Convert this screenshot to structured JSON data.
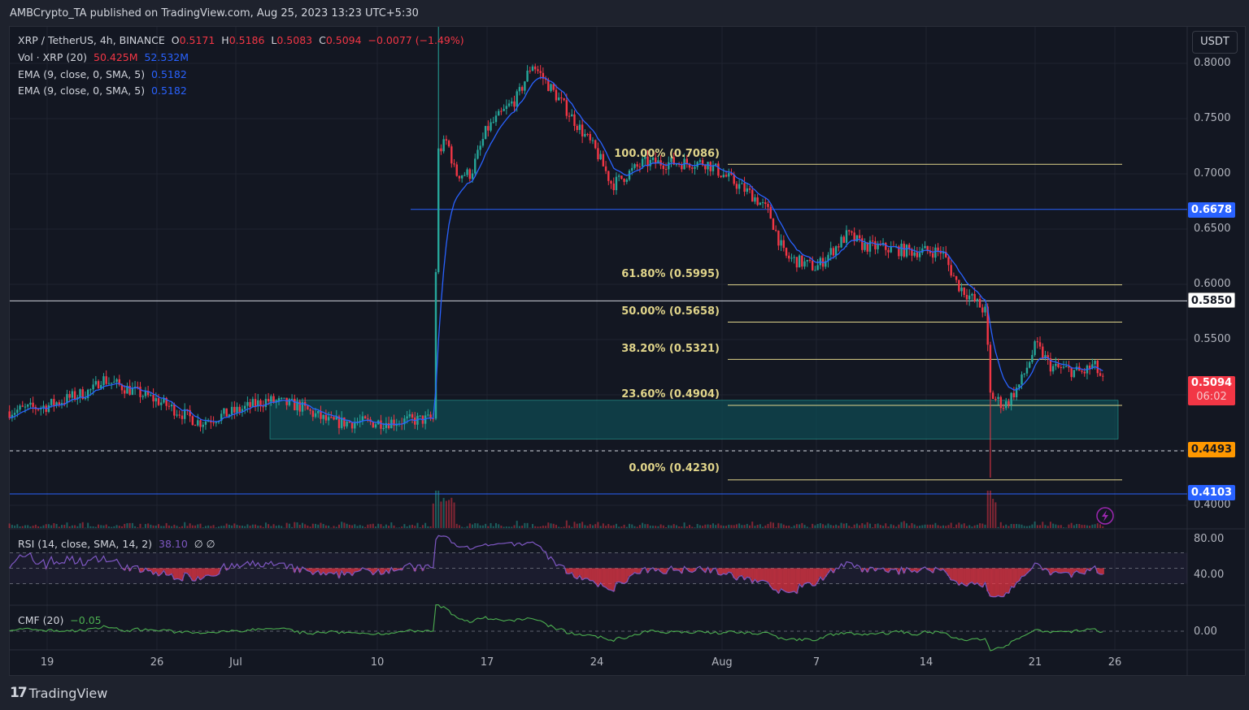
{
  "header": {
    "text": "AMBCrypto_TA published on TradingView.com, Aug 25, 2023 13:23 UTC+5:30"
  },
  "legend": {
    "symbol": "XRP / TetherUS, 4h, BINANCE",
    "o_label": "O",
    "o": "0.5171",
    "h_label": "H",
    "h": "0.5186",
    "l_label": "L",
    "l": "0.5083",
    "c_label": "C",
    "c": "0.5094",
    "change": "−0.0077 (−1.49%)",
    "vol_label": "Vol · XRP (20)",
    "vol": "50.425M",
    "vol_ma": "52.532M",
    "ema1_label": "EMA (9, close, 0, SMA, 5)",
    "ema1": "0.5182",
    "ema2_label": "EMA (9, close, 0, SMA, 5)",
    "ema2": "0.5182",
    "rsi_label": "RSI (14, close, SMA, 14, 2)",
    "rsi": "38.10",
    "rsi_extra": "∅ ∅",
    "cmf_label": "CMF (20)",
    "cmf": "−0.05"
  },
  "price_axis": {
    "currency": "USDT",
    "ticks": [
      "0.8000",
      "0.7500",
      "0.7000",
      "0.6500",
      "0.6000",
      "0.5500",
      "0.4000"
    ],
    "rsi_ticks": [
      "80.00",
      "40.00"
    ],
    "cmf_ticks": [
      "0.00"
    ],
    "tags": {
      "level_high": "0.6678",
      "level_white": "0.5850",
      "last_price": "0.5094",
      "countdown": "06:02",
      "level_orange": "0.4493",
      "level_low": "0.4103"
    }
  },
  "fib_labels": [
    "100.00% (0.7086)",
    "61.80% (0.5995)",
    "50.00% (0.5658)",
    "38.20% (0.5321)",
    "23.60% (0.4904)",
    "0.00% (0.4230)"
  ],
  "date_axis": [
    "19",
    "26",
    "Jul",
    "10",
    "17",
    "24",
    "Aug",
    "7",
    "14",
    "21",
    "26"
  ],
  "footer": {
    "brand": "TradingView"
  },
  "colors": {
    "up": "#26a69a",
    "down": "#f23645",
    "ema": "#2962ff",
    "fib": "#e0d48a",
    "rsi": "#7e57c2",
    "cmf": "#4caf50",
    "orange": "#ff9800"
  },
  "chart_data": {
    "type": "candlestick",
    "title": "XRP / TetherUS, 4h, BINANCE",
    "ylim": [
      0.39,
      0.83
    ],
    "fib_levels": [
      0.7086,
      0.5995,
      0.5658,
      0.5321,
      0.4904,
      0.423
    ],
    "horizontal_levels": [
      0.6678,
      0.585,
      0.4493,
      0.4103
    ],
    "zone": [
      0.46,
      0.495
    ],
    "close_path_day_price": [
      [
        -2.4,
        0.485
      ],
      [
        0,
        0.49
      ],
      [
        3,
        0.505
      ],
      [
        3.4,
        0.515
      ],
      [
        7,
        0.495
      ],
      [
        9.7,
        0.475
      ],
      [
        12,
        0.485
      ],
      [
        14,
        0.495
      ],
      [
        16,
        0.49
      ],
      [
        18,
        0.475
      ],
      [
        21,
        0.475
      ],
      [
        24.6,
        0.478
      ],
      [
        24.9,
        0.72
      ],
      [
        25.5,
        0.73
      ],
      [
        26,
        0.7
      ],
      [
        27,
        0.7
      ],
      [
        28,
        0.74
      ],
      [
        30,
        0.77
      ],
      [
        30.9,
        0.8
      ],
      [
        33,
        0.76
      ],
      [
        35,
        0.72
      ],
      [
        36,
        0.69
      ],
      [
        38,
        0.71
      ],
      [
        42,
        0.71
      ],
      [
        43,
        0.7
      ],
      [
        45,
        0.68
      ],
      [
        46,
        0.665
      ],
      [
        47,
        0.625
      ],
      [
        49,
        0.615
      ],
      [
        51,
        0.645
      ],
      [
        52,
        0.635
      ],
      [
        55,
        0.63
      ],
      [
        57,
        0.63
      ],
      [
        58,
        0.6
      ],
      [
        59.8,
        0.575
      ],
      [
        60.1,
        0.5
      ],
      [
        61,
        0.49
      ],
      [
        62,
        0.51
      ],
      [
        63,
        0.545
      ],
      [
        64,
        0.525
      ],
      [
        66,
        0.52
      ],
      [
        66.7,
        0.527
      ],
      [
        67.4,
        0.509
      ]
    ]
  }
}
